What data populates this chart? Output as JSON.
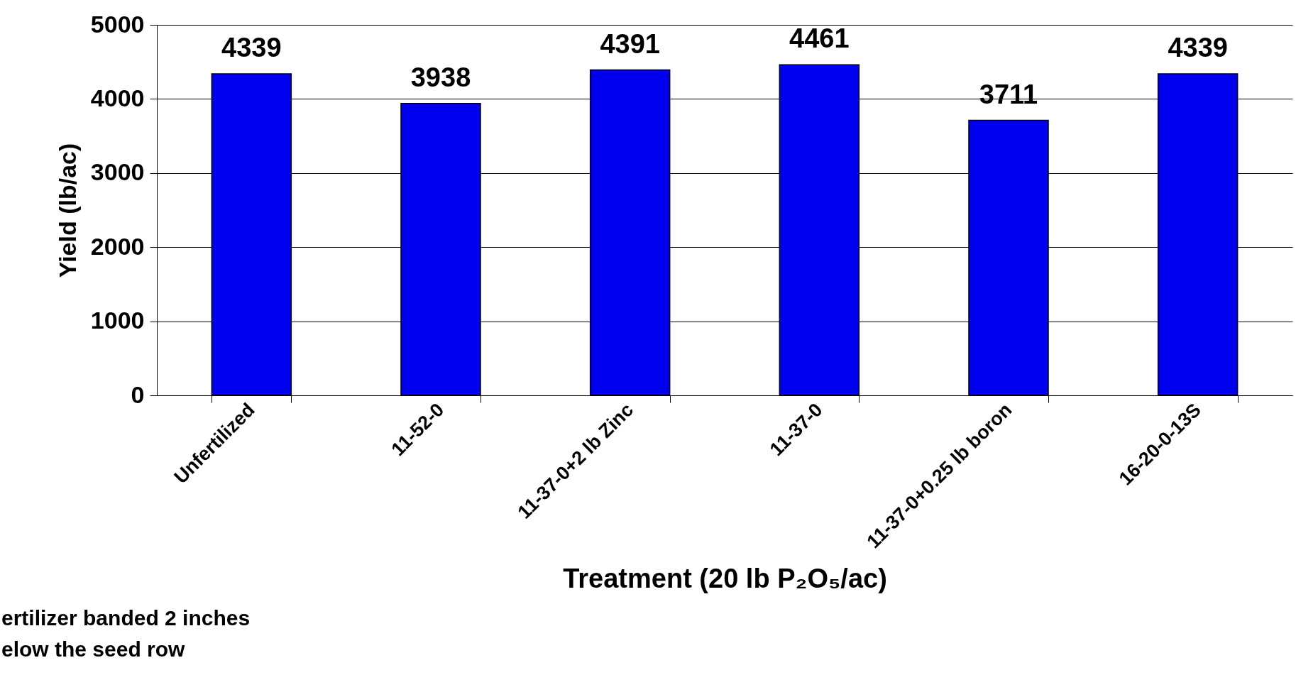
{
  "chart_data": {
    "type": "bar",
    "xlabel": "Treatment (20 lb P₂O₅/ac)",
    "ylabel": "Yield (lb/ac)",
    "categories": [
      "Unfertilized",
      "11-52-0",
      "11-37-0+2 lb Zinc",
      "11-37-0",
      "11-37-0+0.25 lb boron",
      "16-20-0-13S"
    ],
    "values": [
      4339,
      3938,
      4391,
      4461,
      3711,
      4339
    ],
    "color": "#0000ee",
    "ylim": [
      0,
      5000
    ],
    "yticks": [
      0,
      1000,
      2000,
      3000,
      4000,
      5000
    ],
    "grid": "y",
    "data_labels": true,
    "annotations": [
      "ertilizer banded 2 inches\nelow the seed row"
    ]
  }
}
